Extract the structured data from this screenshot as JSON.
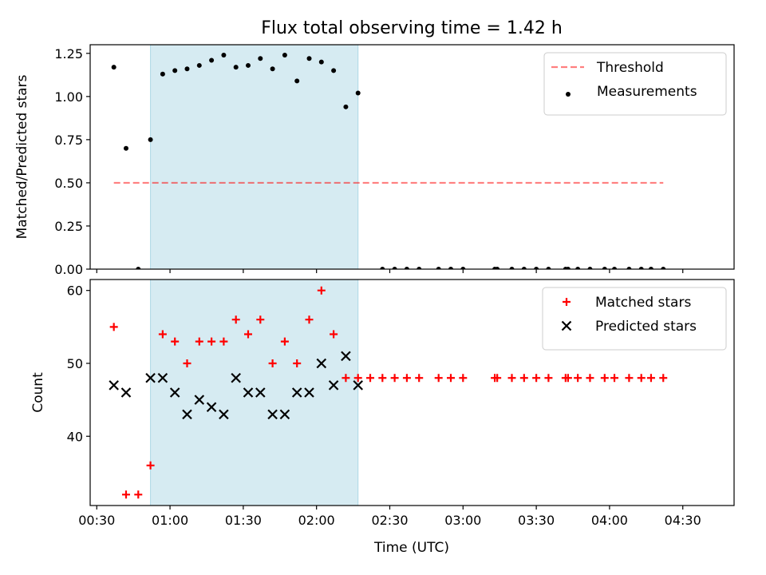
{
  "figure": {
    "title": "Flux total observing time = 1.42 h",
    "xlabel": "Time (UTC)"
  },
  "chart_data": [
    {
      "type": "scatter",
      "ylabel": "Matched/Predicted stars",
      "ylim": [
        0,
        1.3
      ],
      "yticks": [
        0,
        0.25,
        0.5,
        0.75,
        1.0,
        1.25
      ],
      "ytick_labels": [
        "0.00",
        "0.25",
        "0.50",
        "0.75",
        "1.00",
        "1.25"
      ],
      "x_unit": "minutes after 00:00 UTC",
      "xlim": [
        27.3,
        291
      ],
      "xticks": [
        30,
        60,
        90,
        120,
        150,
        180,
        210,
        240,
        270
      ],
      "xtick_labels": [],
      "shaded_span": {
        "x_start": 52,
        "x_end": 137,
        "color": "#add8e6"
      },
      "legend_position": "top-right",
      "series": [
        {
          "name": "Threshold",
          "kind": "dashed-line",
          "color": "#ff0000",
          "x": [
            37,
            262
          ],
          "y": [
            0.5,
            0.5
          ]
        },
        {
          "name": "Measurements",
          "kind": "points",
          "color": "#000000",
          "x": [
            37,
            42,
            47,
            52,
            57,
            62,
            67,
            72,
            77,
            82,
            87,
            92,
            97,
            102,
            107,
            112,
            117,
            122,
            127,
            132,
            137,
            147,
            152,
            157,
            162,
            170,
            175,
            180,
            193,
            194,
            200,
            205,
            210,
            215,
            222,
            223,
            227,
            232,
            238,
            242,
            248,
            253,
            257,
            262
          ],
          "y": [
            1.17,
            0.7,
            0.0,
            0.75,
            1.13,
            1.15,
            1.16,
            1.18,
            1.21,
            1.24,
            1.17,
            1.18,
            1.22,
            1.16,
            1.24,
            1.09,
            1.22,
            1.2,
            1.15,
            0.94,
            1.02,
            0.0,
            0.0,
            0.0,
            0.0,
            0.0,
            0.0,
            0.0,
            0.0,
            0.0,
            0.0,
            0.0,
            0.0,
            0.0,
            0.0,
            0.0,
            0.0,
            0.0,
            0.0,
            0.0,
            0.0,
            0.0,
            0.0,
            0.0
          ]
        }
      ]
    },
    {
      "type": "scatter",
      "ylabel": "Count",
      "ylim": [
        30.5,
        61.5
      ],
      "yticks": [
        40,
        50,
        60
      ],
      "ytick_labels": [
        "40",
        "50",
        "60"
      ],
      "x_unit": "minutes after 00:00 UTC",
      "xlim": [
        27.3,
        291
      ],
      "xticks": [
        30,
        60,
        90,
        120,
        150,
        180,
        210,
        240,
        270
      ],
      "xtick_labels": [
        "00:30",
        "01:00",
        "01:30",
        "02:00",
        "02:30",
        "03:00",
        "03:30",
        "04:00",
        "04:30"
      ],
      "shaded_span": {
        "x_start": 52,
        "x_end": 137,
        "color": "#add8e6"
      },
      "legend_position": "top-right",
      "series": [
        {
          "name": "Matched stars",
          "kind": "plus",
          "color": "#ff0000",
          "x": [
            37,
            42,
            47,
            52,
            57,
            62,
            67,
            72,
            77,
            82,
            87,
            92,
            97,
            102,
            107,
            112,
            117,
            122,
            127,
            132,
            137,
            142,
            147,
            152,
            157,
            162,
            170,
            175,
            180,
            193,
            194,
            200,
            205,
            210,
            215,
            222,
            223,
            227,
            232,
            238,
            242,
            248,
            253,
            257,
            262
          ],
          "y": [
            55,
            32,
            32,
            36,
            54,
            53,
            50,
            53,
            53,
            53,
            56,
            54,
            56,
            50,
            53,
            50,
            56,
            60,
            54,
            48,
            48,
            48,
            48,
            48,
            48,
            48,
            48,
            48,
            48,
            48,
            48,
            48,
            48,
            48,
            48,
            48,
            48,
            48,
            48,
            48,
            48,
            48,
            48,
            48,
            48
          ]
        },
        {
          "name": "Predicted stars",
          "kind": "x",
          "color": "#000000",
          "x": [
            37,
            42,
            52,
            57,
            62,
            67,
            72,
            77,
            82,
            87,
            92,
            97,
            102,
            107,
            112,
            117,
            122,
            127,
            132,
            137
          ],
          "y": [
            47,
            46,
            48,
            48,
            46,
            43,
            45,
            44,
            43,
            48,
            46,
            46,
            43,
            43,
            46,
            46,
            50,
            47,
            51,
            47
          ]
        }
      ]
    }
  ]
}
